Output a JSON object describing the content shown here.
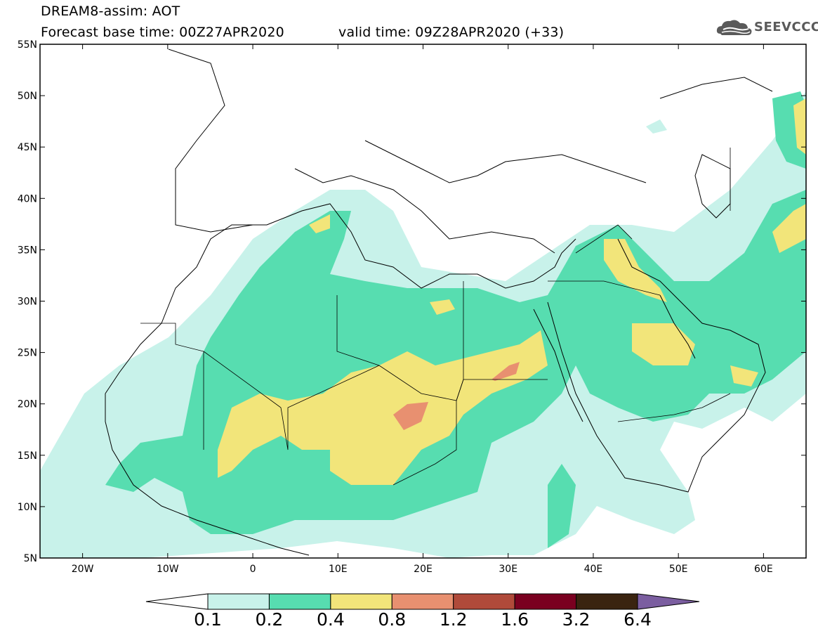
{
  "header": {
    "title_line1": "DREAM8-assim: AOT",
    "title_line2_base": "Forecast base time: 00Z27APR2020",
    "title_line2_valid": "valid time: 09Z28APR2020 (+33)",
    "logo_text": "SEEVCCC",
    "logo_icon": "cloud-icon"
  },
  "axes": {
    "lat_labels": [
      "55N",
      "50N",
      "45N",
      "40N",
      "35N",
      "30N",
      "25N",
      "20N",
      "15N",
      "10N",
      "5N"
    ],
    "lon_labels": [
      "20W",
      "10W",
      "0",
      "10E",
      "20E",
      "30E",
      "40E",
      "50E",
      "60E"
    ]
  },
  "legend": {
    "labels": [
      "0.1",
      "0.2",
      "0.4",
      "0.8",
      "1.2",
      "1.6",
      "3.2",
      "6.4"
    ],
    "colors": [
      "#ffffff",
      "#c8f2ea",
      "#57ddb0",
      "#f2e57a",
      "#e89070",
      "#b04a3a",
      "#7a0020",
      "#3a2410",
      "#7b5ea0"
    ]
  },
  "map": {
    "variable": "AOT",
    "extent": {
      "lon": [
        -25,
        65
      ],
      "lat": [
        5,
        55
      ]
    }
  }
}
